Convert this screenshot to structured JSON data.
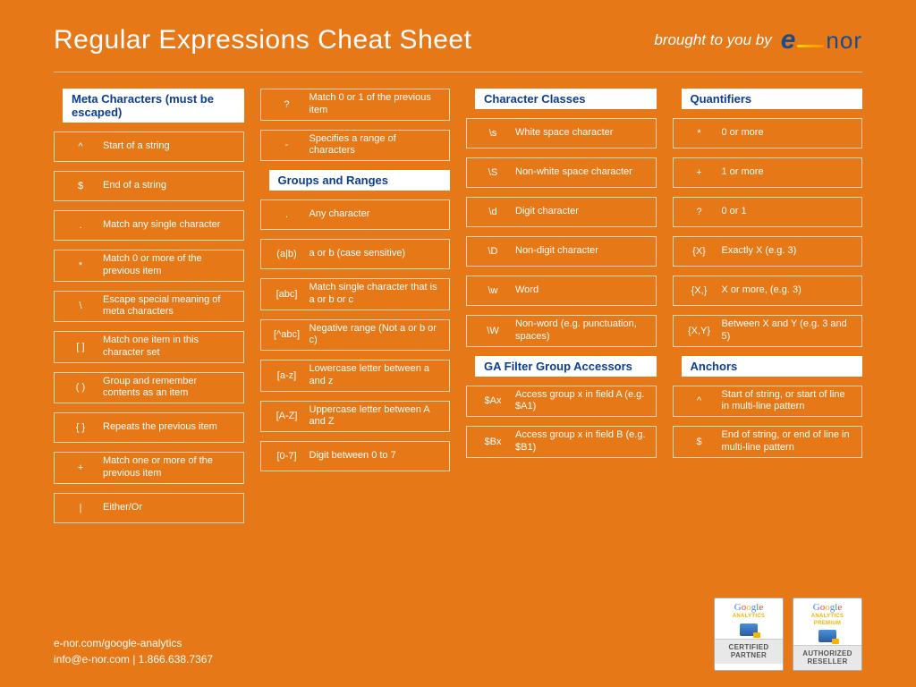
{
  "header": {
    "title": "Regular Expressions Cheat Sheet",
    "brought": "brought to you by",
    "logo_e": "e",
    "logo_nor": "nor"
  },
  "columns": [
    {
      "sections": [
        {
          "title": "Meta Characters (must be escaped)",
          "items": [
            {
              "sym": "^",
              "desc": "Start of a string"
            },
            {
              "sym": "$",
              "desc": "End of a string"
            },
            {
              "sym": ".",
              "desc": "Match any single character"
            },
            {
              "sym": "*",
              "desc": "Match 0 or more of the previous item"
            },
            {
              "sym": "\\",
              "desc": "Escape special meaning of meta characters"
            },
            {
              "sym": "[ ]",
              "desc": "Match one item in this character set"
            },
            {
              "sym": "( )",
              "desc": "Group and remember contents as an item"
            },
            {
              "sym": "{ }",
              "desc": "Repeats the previous item"
            },
            {
              "sym": "+",
              "desc": "Match one or more of the previous item"
            },
            {
              "sym": "|",
              "desc": "Either/Or"
            }
          ]
        }
      ]
    },
    {
      "sections": [
        {
          "title": null,
          "items": [
            {
              "sym": "?",
              "desc": "Match 0 or 1 of the previous item"
            },
            {
              "sym": "-",
              "desc": "Specifies a range of characters"
            }
          ]
        },
        {
          "title": "Groups and Ranges",
          "items": [
            {
              "sym": ".",
              "desc": "Any character"
            },
            {
              "sym": "(a|b)",
              "desc": "a or b (case sensitive)"
            },
            {
              "sym": "[abc]",
              "desc": "Match single character that is a or b or c"
            },
            {
              "sym": "[^abc]",
              "desc": "Negative range (Not a or b or c)"
            },
            {
              "sym": "[a-z]",
              "desc": "Lowercase letter between a and z"
            },
            {
              "sym": "[A-Z]",
              "desc": "Uppercase letter between A and Z"
            },
            {
              "sym": "[0-7]",
              "desc": "Digit between 0 to 7"
            }
          ]
        }
      ]
    },
    {
      "sections": [
        {
          "title": "Character Classes",
          "items": [
            {
              "sym": "\\s",
              "desc": "White space character"
            },
            {
              "sym": "\\S",
              "desc": "Non-white space character"
            },
            {
              "sym": "\\d",
              "desc": "Digit character"
            },
            {
              "sym": "\\D",
              "desc": "Non-digit character"
            },
            {
              "sym": "\\w",
              "desc": "Word"
            },
            {
              "sym": "\\W",
              "desc": "Non-word (e.g. punctuation, spaces)"
            }
          ]
        },
        {
          "title": "GA Filter Group Accessors",
          "items": [
            {
              "sym": "$Ax",
              "desc": "Access group x in field A (e.g. $A1)"
            },
            {
              "sym": "$Bx",
              "desc": "Access group x in field B (e.g. $B1)"
            }
          ]
        }
      ]
    },
    {
      "sections": [
        {
          "title": "Quantifiers",
          "items": [
            {
              "sym": "*",
              "desc": "0 or more"
            },
            {
              "sym": "+",
              "desc": "1 or more"
            },
            {
              "sym": "?",
              "desc": "0 or 1"
            },
            {
              "sym": "{X}",
              "desc": "Exactly X (e.g. 3)"
            },
            {
              "sym": "{X,}",
              "desc": "X or more, (e.g. 3)"
            },
            {
              "sym": "{X,Y}",
              "desc": "Between X and Y (e.g. 3 and 5)"
            }
          ]
        },
        {
          "title": "Anchors",
          "items": [
            {
              "sym": "^",
              "desc": "Start of string, or start of line in multi-line pattern"
            },
            {
              "sym": "$",
              "desc": "End of string, or end of line in multi-line pattern"
            }
          ]
        }
      ]
    }
  ],
  "footer": {
    "url": "e-nor.com/google-analytics",
    "contact": "info@e-nor.com | 1.866.638.7367"
  },
  "badges": [
    {
      "sub": "ANALYTICS",
      "label": "CERTIFIED PARTNER"
    },
    {
      "sub": "ANALYTICS PREMIUM",
      "label": "AUTHORIZED RESELLER"
    }
  ],
  "style": {
    "bg": "#e67817",
    "heading_color": "#0b3d91",
    "heading_bg": "#ffffff",
    "item_border": "rgba(255,255,255,0.7)",
    "text": "#ffffff"
  }
}
